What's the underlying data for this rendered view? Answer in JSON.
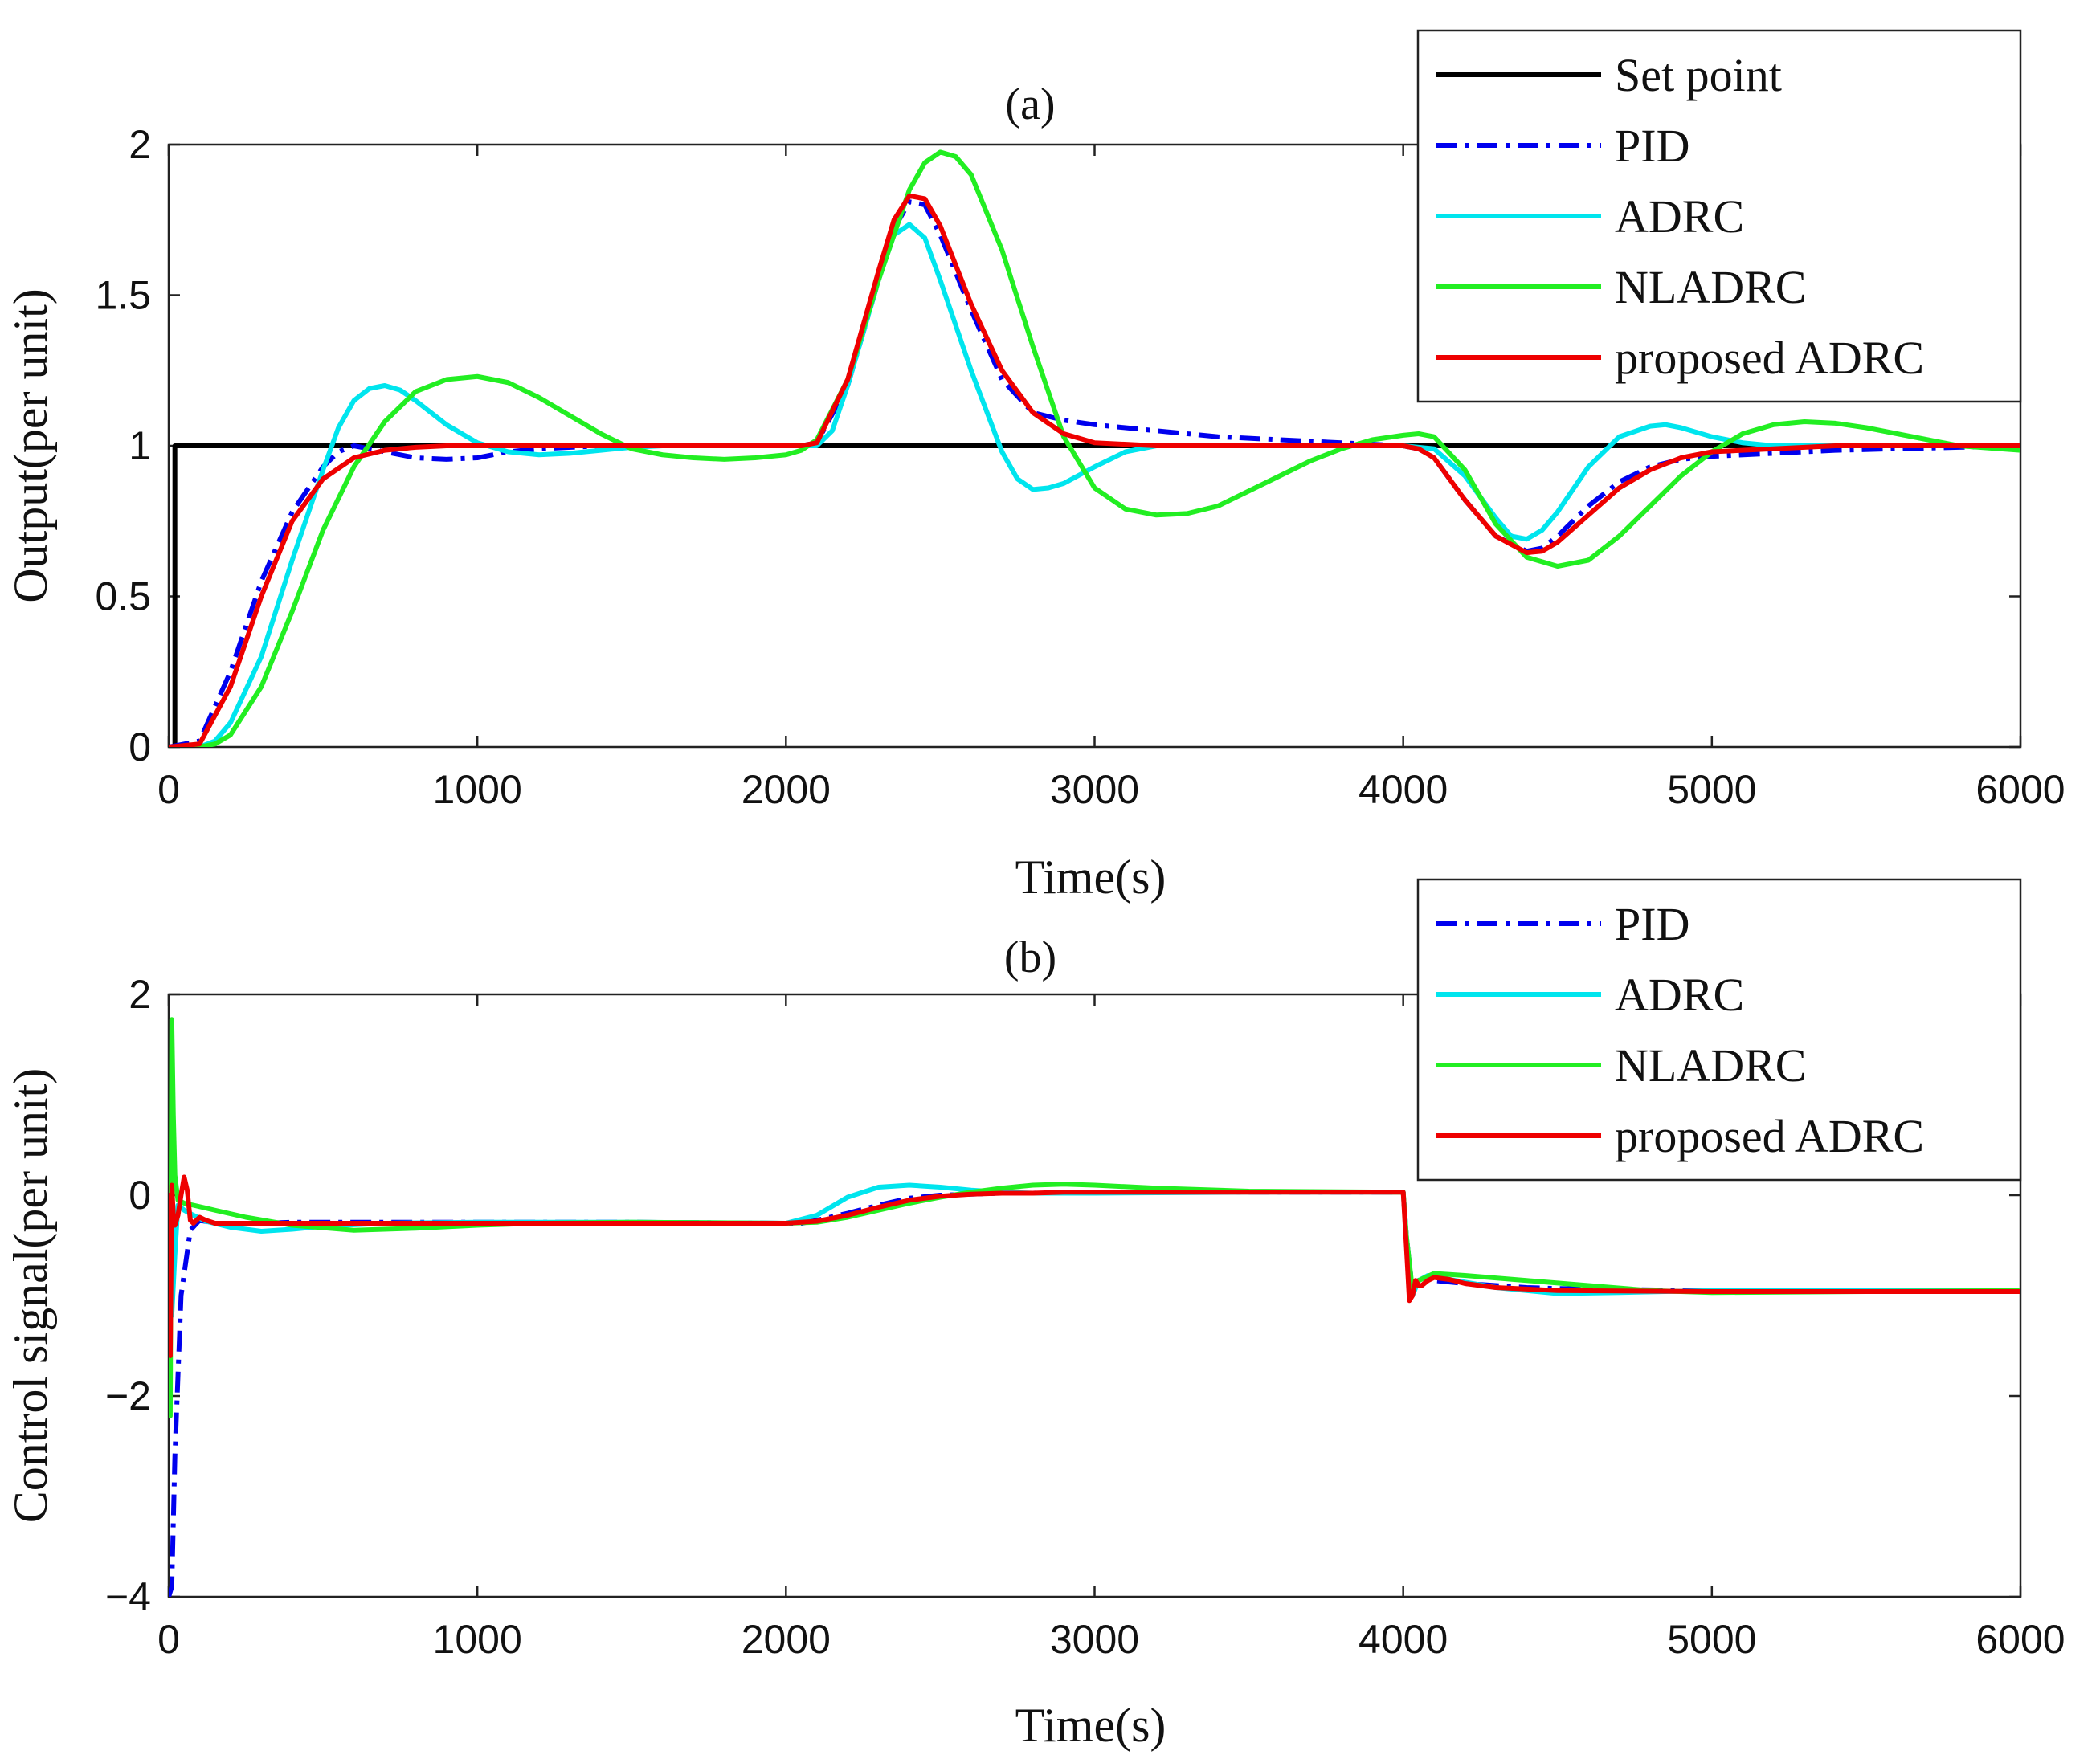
{
  "chart_data": [
    {
      "type": "line",
      "title": "(a)",
      "xlabel": "Time(s)",
      "ylabel": "Output(per unit)",
      "xlim": [
        0,
        6000
      ],
      "ylim": [
        0,
        2
      ],
      "xticks": [
        0,
        1000,
        2000,
        3000,
        4000,
        5000,
        6000
      ],
      "yticks": [
        0,
        0.5,
        1,
        1.5,
        2
      ],
      "ytick_labels": [
        "0",
        "0.5",
        "1",
        "1.5",
        "2"
      ],
      "grid": false,
      "legend_position": "top-right",
      "series": [
        {
          "name": "Set point",
          "color": "#000000",
          "style": "solid",
          "x": [
            0,
            20,
            20,
            6000
          ],
          "y": [
            0,
            0,
            1,
            1
          ]
        },
        {
          "name": "PID",
          "color": "#0000ee",
          "style": "dashdot",
          "x": [
            0,
            100,
            200,
            300,
            400,
            500,
            550,
            600,
            700,
            800,
            900,
            1000,
            1100,
            1200,
            1400,
            1600,
            1800,
            2000,
            2050,
            2100,
            2200,
            2300,
            2350,
            2400,
            2450,
            2500,
            2600,
            2700,
            2800,
            2900,
            3000,
            3200,
            3400,
            3600,
            3800,
            4000,
            4050,
            4100,
            4200,
            4300,
            4400,
            4450,
            4500,
            4600,
            4700,
            4800,
            4900,
            5000,
            5200,
            5400,
            5600,
            5800,
            6000
          ],
          "y": [
            0,
            0.02,
            0.25,
            0.55,
            0.78,
            0.93,
            0.98,
            1.0,
            0.98,
            0.96,
            0.955,
            0.96,
            0.98,
            0.99,
            1.0,
            1.0,
            1.0,
            1.0,
            1.0,
            1.01,
            1.2,
            1.55,
            1.72,
            1.81,
            1.8,
            1.7,
            1.45,
            1.22,
            1.11,
            1.085,
            1.07,
            1.05,
            1.03,
            1.02,
            1.01,
            1.0,
            0.99,
            0.96,
            0.82,
            0.7,
            0.65,
            0.66,
            0.7,
            0.8,
            0.88,
            0.93,
            0.955,
            0.965,
            0.975,
            0.985,
            0.99,
            0.995,
            1.0
          ]
        },
        {
          "name": "ADRC",
          "color": "#00e5ee",
          "style": "solid",
          "x": [
            0,
            100,
            150,
            200,
            300,
            400,
            500,
            550,
            600,
            650,
            700,
            750,
            800,
            900,
            1000,
            1100,
            1200,
            1300,
            1400,
            1500,
            1600,
            1800,
            2000,
            2100,
            2150,
            2200,
            2300,
            2350,
            2400,
            2450,
            2500,
            2600,
            2700,
            2750,
            2800,
            2850,
            2900,
            3000,
            3100,
            3200,
            3400,
            3600,
            3800,
            4000,
            4100,
            4200,
            4300,
            4350,
            4400,
            4450,
            4500,
            4600,
            4700,
            4800,
            4850,
            4900,
            5000,
            5100,
            5200,
            5400,
            5600,
            5800,
            6000
          ],
          "y": [
            0,
            0.0,
            0.02,
            0.08,
            0.3,
            0.62,
            0.92,
            1.06,
            1.15,
            1.19,
            1.2,
            1.185,
            1.15,
            1.07,
            1.01,
            0.98,
            0.97,
            0.975,
            0.985,
            0.995,
            1.0,
            1.0,
            1.0,
            1.0,
            1.05,
            1.2,
            1.55,
            1.7,
            1.735,
            1.69,
            1.55,
            1.25,
            0.98,
            0.89,
            0.855,
            0.86,
            0.875,
            0.93,
            0.98,
            1.0,
            1.0,
            1.0,
            1.0,
            1.0,
            0.99,
            0.9,
            0.76,
            0.7,
            0.69,
            0.72,
            0.78,
            0.93,
            1.03,
            1.065,
            1.07,
            1.06,
            1.03,
            1.01,
            1.0,
            1.0,
            1.0,
            1.0,
            1.0
          ]
        },
        {
          "name": "NLADRC",
          "color": "#22ee22",
          "style": "solid",
          "x": [
            0,
            100,
            150,
            200,
            300,
            400,
            500,
            600,
            700,
            800,
            900,
            1000,
            1100,
            1200,
            1300,
            1400,
            1500,
            1600,
            1700,
            1800,
            1900,
            2000,
            2050,
            2100,
            2200,
            2300,
            2400,
            2450,
            2500,
            2550,
            2600,
            2700,
            2800,
            2900,
            3000,
            3100,
            3200,
            3300,
            3400,
            3500,
            3600,
            3700,
            3800,
            3900,
            4000,
            4050,
            4100,
            4200,
            4300,
            4400,
            4500,
            4600,
            4700,
            4800,
            4900,
            5000,
            5100,
            5200,
            5300,
            5400,
            5500,
            5600,
            5700,
            5800,
            6000
          ],
          "y": [
            0,
            0.0,
            0.01,
            0.04,
            0.2,
            0.45,
            0.72,
            0.93,
            1.08,
            1.18,
            1.22,
            1.23,
            1.21,
            1.16,
            1.1,
            1.04,
            0.99,
            0.97,
            0.96,
            0.955,
            0.96,
            0.97,
            0.985,
            1.02,
            1.22,
            1.55,
            1.85,
            1.94,
            1.975,
            1.96,
            1.9,
            1.65,
            1.33,
            1.03,
            0.86,
            0.79,
            0.77,
            0.775,
            0.8,
            0.85,
            0.9,
            0.95,
            0.99,
            1.02,
            1.035,
            1.04,
            1.03,
            0.92,
            0.74,
            0.63,
            0.6,
            0.62,
            0.7,
            0.8,
            0.9,
            0.98,
            1.04,
            1.07,
            1.08,
            1.075,
            1.06,
            1.04,
            1.02,
            1.0,
            0.985
          ]
        },
        {
          "name": "proposed ADRC",
          "color": "#ee0000",
          "style": "solid",
          "x": [
            0,
            100,
            200,
            300,
            400,
            500,
            600,
            700,
            800,
            900,
            1000,
            1200,
            1400,
            1600,
            1800,
            2000,
            2050,
            2100,
            2200,
            2300,
            2350,
            2400,
            2450,
            2500,
            2600,
            2700,
            2800,
            2900,
            3000,
            3200,
            3400,
            3600,
            3800,
            4000,
            4050,
            4100,
            4200,
            4300,
            4400,
            4450,
            4500,
            4600,
            4700,
            4800,
            4900,
            5000,
            5200,
            5400,
            5600,
            5800,
            6000
          ],
          "y": [
            0,
            0.01,
            0.2,
            0.5,
            0.75,
            0.89,
            0.96,
            0.985,
            0.995,
            1.0,
            1.0,
            1.0,
            1.0,
            1.0,
            1.0,
            1.0,
            1.0,
            1.01,
            1.22,
            1.58,
            1.75,
            1.83,
            1.82,
            1.73,
            1.47,
            1.25,
            1.11,
            1.04,
            1.01,
            1.0,
            1.0,
            1.0,
            1.0,
            1.0,
            0.99,
            0.96,
            0.82,
            0.7,
            0.645,
            0.65,
            0.68,
            0.77,
            0.86,
            0.92,
            0.96,
            0.98,
            0.99,
            1.0,
            1.0,
            1.0,
            1.0
          ]
        }
      ]
    },
    {
      "type": "line",
      "title": "(b)",
      "xlabel": "Time(s)",
      "ylabel": "Control signal(per unit)",
      "xlim": [
        0,
        6000
      ],
      "ylim": [
        -4,
        2
      ],
      "xticks": [
        0,
        1000,
        2000,
        3000,
        4000,
        5000,
        6000
      ],
      "yticks": [
        -4,
        -2,
        0,
        2
      ],
      "ytick_labels": [
        "−4",
        "−2",
        "0",
        "2"
      ],
      "grid": false,
      "legend_position": "top-right",
      "series": [
        {
          "name": "PID",
          "color": "#0000ee",
          "style": "dashdot",
          "x": [
            0,
            10,
            20,
            40,
            70,
            100,
            150,
            200,
            400,
            600,
            800,
            1000,
            1500,
            2000,
            2050,
            2100,
            2200,
            2300,
            2400,
            2500,
            2600,
            2700,
            2800,
            2900,
            3000,
            3500,
            4000,
            4010,
            4030,
            4050,
            4070,
            4100,
            4200,
            4300,
            4400,
            4500,
            4700,
            5000,
            5500,
            6000
          ],
          "y": [
            -4.0,
            -3.9,
            -2.6,
            -1.0,
            -0.35,
            -0.25,
            -0.28,
            -0.29,
            -0.27,
            -0.27,
            -0.27,
            -0.27,
            -0.27,
            -0.28,
            -0.28,
            -0.25,
            -0.18,
            -0.1,
            -0.03,
            0.0,
            0.01,
            0.02,
            0.02,
            0.03,
            0.03,
            0.03,
            0.03,
            -0.4,
            -0.95,
            -0.85,
            -0.8,
            -0.85,
            -0.88,
            -0.9,
            -0.92,
            -0.93,
            -0.94,
            -0.95,
            -0.95,
            -0.95
          ]
        },
        {
          "name": "ADRC",
          "color": "#00e5ee",
          "style": "solid",
          "x": [
            0,
            10,
            20,
            30,
            50,
            80,
            120,
            200,
            300,
            400,
            500,
            700,
            1000,
            1500,
            2000,
            2100,
            2200,
            2300,
            2400,
            2500,
            2600,
            2700,
            2800,
            3000,
            3500,
            4000,
            4010,
            4030,
            4050,
            4080,
            4150,
            4300,
            4500,
            4700,
            5000,
            5500,
            6000
          ],
          "y": [
            0,
            -1.2,
            -0.6,
            -0.1,
            -0.15,
            -0.2,
            -0.26,
            -0.32,
            -0.36,
            -0.34,
            -0.31,
            -0.28,
            -0.27,
            -0.27,
            -0.28,
            -0.2,
            -0.02,
            0.08,
            0.1,
            0.08,
            0.05,
            0.03,
            0.02,
            0.02,
            0.03,
            0.03,
            -0.4,
            -1.0,
            -0.85,
            -0.8,
            -0.84,
            -0.92,
            -0.98,
            -0.97,
            -0.95,
            -0.95,
            -0.95
          ]
        },
        {
          "name": "NLADRC",
          "color": "#22ee22",
          "style": "solid",
          "x": [
            0,
            5,
            10,
            15,
            20,
            30,
            50,
            80,
            150,
            250,
            400,
            600,
            800,
            1000,
            1200,
            1500,
            2000,
            2100,
            2200,
            2300,
            2400,
            2500,
            2600,
            2700,
            2800,
            2900,
            3000,
            3200,
            3500,
            4000,
            4010,
            4030,
            4050,
            4100,
            4200,
            4400,
            4600,
            4800,
            5000,
            5500,
            6000
          ],
          "y": [
            0,
            -2.2,
            1.75,
            0.8,
            0.2,
            -0.05,
            -0.08,
            -0.1,
            -0.15,
            -0.22,
            -0.3,
            -0.35,
            -0.33,
            -0.3,
            -0.28,
            -0.27,
            -0.28,
            -0.27,
            -0.22,
            -0.15,
            -0.08,
            -0.02,
            0.03,
            0.07,
            0.1,
            0.11,
            0.1,
            0.07,
            0.04,
            0.03,
            -0.4,
            -0.95,
            -0.85,
            -0.78,
            -0.8,
            -0.85,
            -0.9,
            -0.95,
            -0.97,
            -0.96,
            -0.95
          ]
        },
        {
          "name": "proposed ADRC",
          "color": "#ee0000",
          "style": "solid",
          "x": [
            0,
            5,
            10,
            15,
            20,
            30,
            40,
            50,
            60,
            70,
            80,
            100,
            120,
            150,
            200,
            300,
            500,
            1000,
            1500,
            2000,
            2100,
            2200,
            2300,
            2400,
            2500,
            2600,
            2700,
            2800,
            2900,
            3000,
            3500,
            4000,
            4010,
            4020,
            4030,
            4040,
            4050,
            4060,
            4080,
            4100,
            4150,
            4200,
            4300,
            4500,
            5000,
            5500,
            6000
          ],
          "y": [
            0,
            -1.6,
            0.1,
            -0.2,
            -0.3,
            -0.2,
            0.0,
            0.18,
            0.05,
            -0.25,
            -0.28,
            -0.22,
            -0.25,
            -0.28,
            -0.28,
            -0.28,
            -0.28,
            -0.28,
            -0.28,
            -0.28,
            -0.26,
            -0.2,
            -0.12,
            -0.05,
            -0.01,
            0.01,
            0.02,
            0.02,
            0.03,
            0.03,
            0.03,
            0.03,
            -0.5,
            -1.05,
            -1.0,
            -0.85,
            -0.9,
            -0.9,
            -0.85,
            -0.82,
            -0.84,
            -0.88,
            -0.92,
            -0.95,
            -0.96,
            -0.96,
            -0.96
          ]
        }
      ]
    }
  ]
}
